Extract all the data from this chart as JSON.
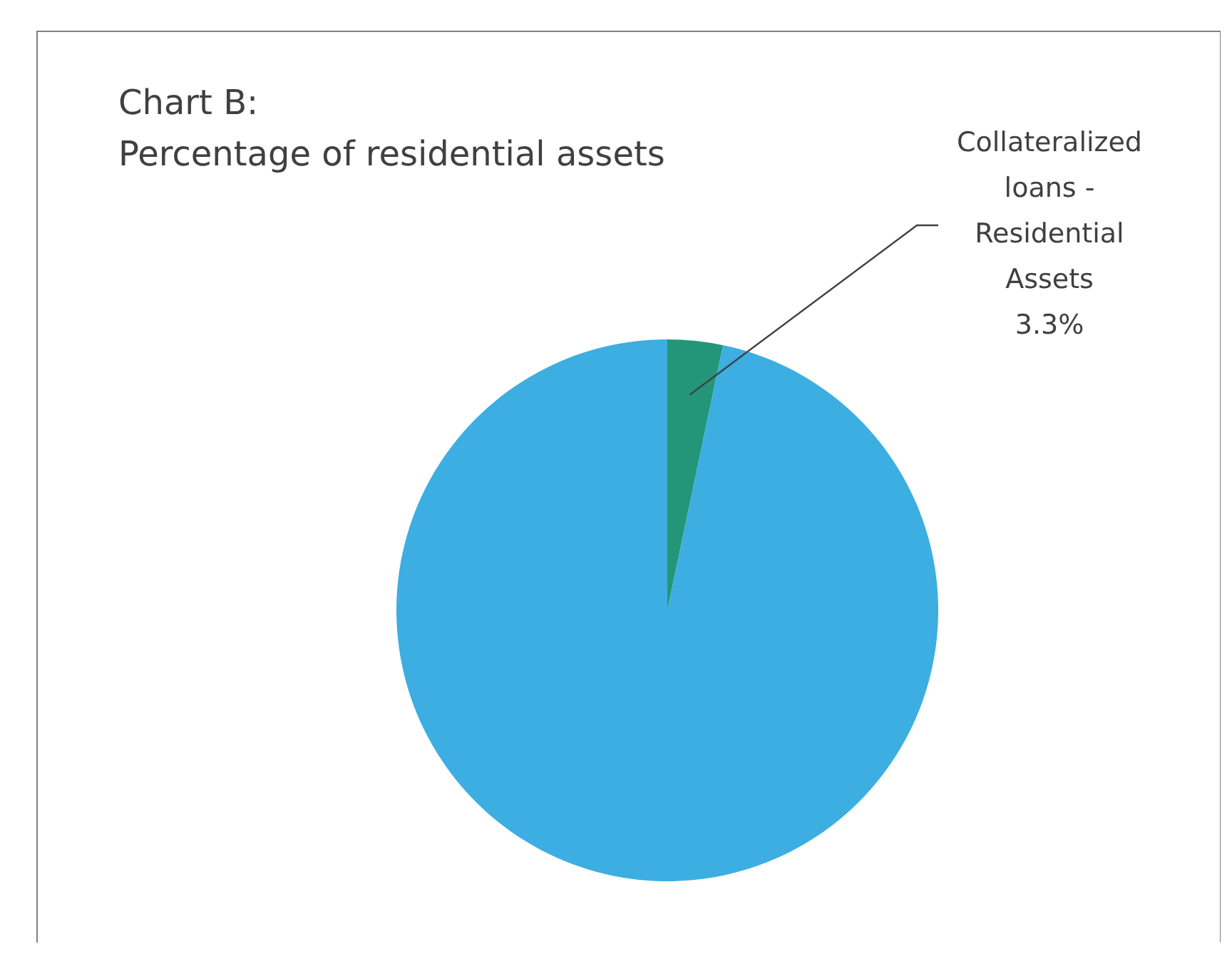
{
  "chart_data": {
    "type": "pie",
    "title": "Chart B:",
    "subtitle": "Percentage of residential assets",
    "categories": [
      "Collateralized loans - Residential Assets",
      null
    ],
    "values": [
      3.3,
      96.7
    ],
    "colors": [
      "#23967a",
      "#3daee2"
    ],
    "value_labels": [
      "3.3%",
      null
    ]
  }
}
